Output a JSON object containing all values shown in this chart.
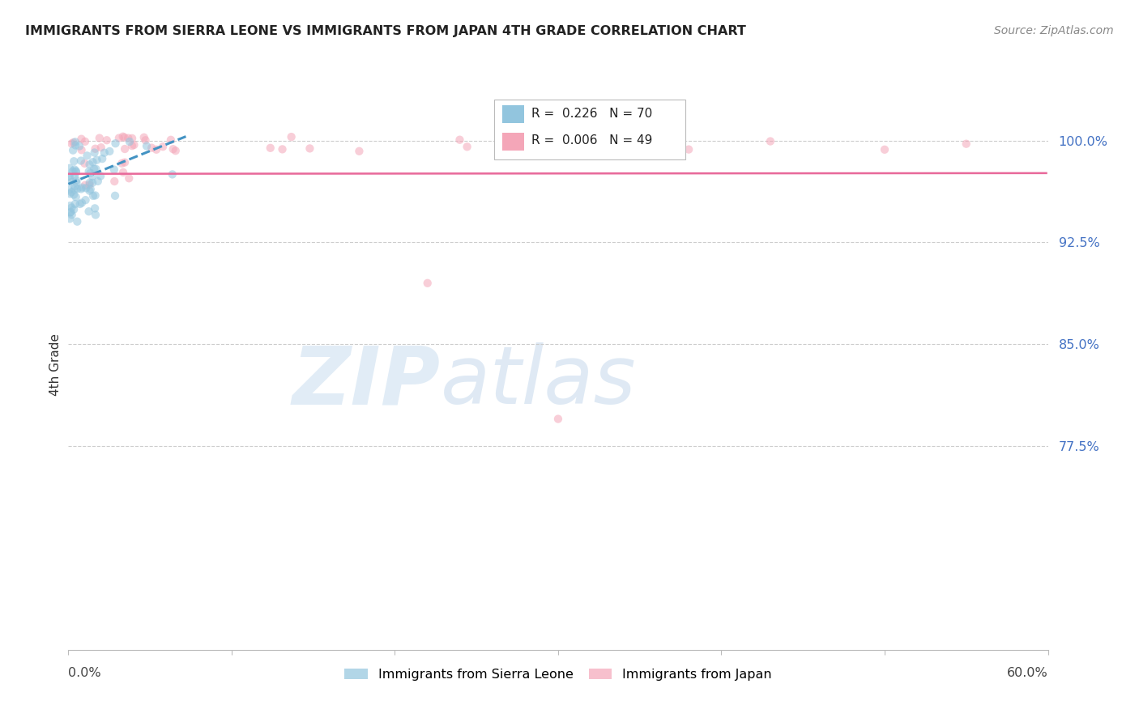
{
  "title": "IMMIGRANTS FROM SIERRA LEONE VS IMMIGRANTS FROM JAPAN 4TH GRADE CORRELATION CHART",
  "source": "Source: ZipAtlas.com",
  "ylabel": "4th Grade",
  "y_ticks": [
    0.775,
    0.85,
    0.925,
    1.0
  ],
  "y_tick_labels": [
    "77.5%",
    "85.0%",
    "92.5%",
    "100.0%"
  ],
  "xlim": [
    0.0,
    0.6
  ],
  "ylim": [
    0.625,
    1.045
  ],
  "legend_r1": "R =  0.226",
  "legend_n1": "N = 70",
  "legend_r2": "R =  0.006",
  "legend_n2": "N = 49",
  "color_blue": "#92c5de",
  "color_pink": "#f4a6b8",
  "color_blue_line": "#4393c3",
  "color_pink_line": "#e8699a",
  "marker_size": 55
}
